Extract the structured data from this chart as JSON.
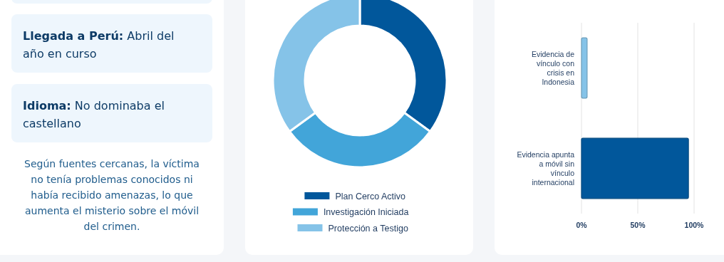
{
  "chart_data": [
    {
      "type": "other",
      "annotations": [
        "Llegada a Perú: Abril del año en curso",
        "Idioma: No dominaba el castellano",
        "Según fuentes cercanas, la víctima no tenía problemas conocidos ni había recibido amenazas, lo que aumenta el misterio sobre el móvil del crimen."
      ]
    },
    {
      "type": "donut",
      "categories": [
        "Plan Cerco Activo",
        "Investigación Iniciada",
        "Protección a Testigo"
      ],
      "values": [
        35,
        30,
        35
      ],
      "colors": [
        "#01579b",
        "#42a5d9",
        "#85c3e8"
      ],
      "legend": "bottom"
    },
    {
      "type": "bar",
      "orientation": "horizontal",
      "categories": [
        "Evidencia de vínculo con crisis en Indonesia",
        "Evidencia apunta a móvil sin vínculo internacional"
      ],
      "values": [
        5,
        95
      ],
      "colors": [
        "#85c3e8",
        "#01579b"
      ],
      "xlim": [
        0,
        100
      ],
      "xticks": [
        {
          "value": 0,
          "label": "0%"
        },
        {
          "value": 50,
          "label": "50%"
        },
        {
          "value": 100,
          "label": "100%"
        }
      ],
      "grid": "x"
    }
  ]
}
